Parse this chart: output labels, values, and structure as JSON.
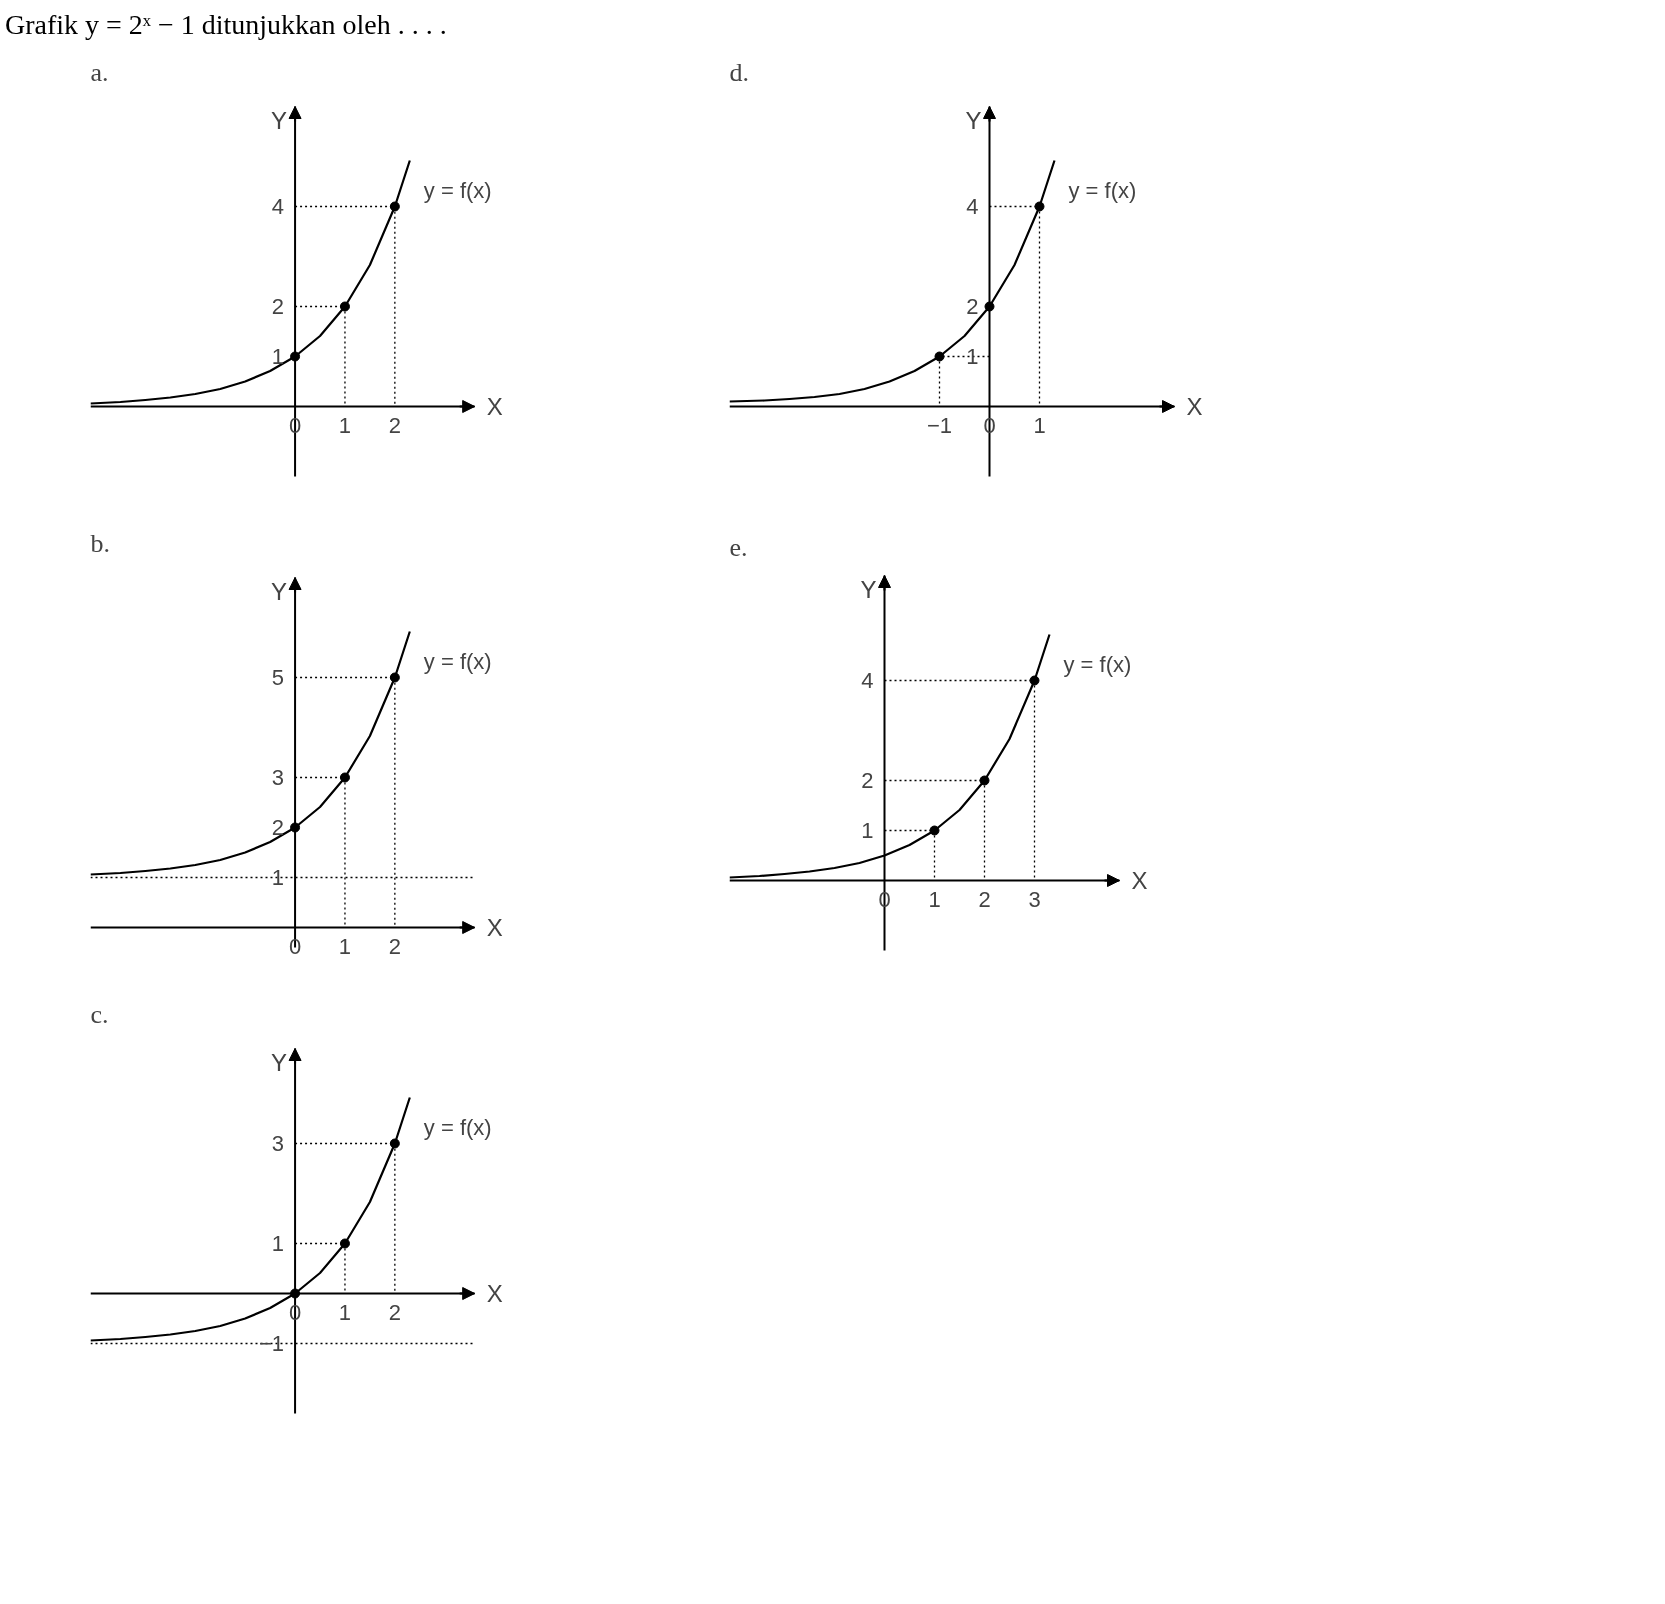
{
  "chart_data": [
    {
      "type": "line",
      "title": "a.",
      "subtitle": "Grafik y = 2ˣ − 1 ditunjukkan oleh . . . .",
      "annotations": [
        "y = f(x)"
      ],
      "xlabel": "X",
      "ylabel": "Y",
      "xlim": [
        -4.1,
        3.6
      ],
      "ylim": [
        -1.4,
        6
      ],
      "xticks": [
        0,
        1,
        2
      ],
      "yticks": [
        1,
        2,
        4
      ],
      "series": [
        {
          "type": "line",
          "color": "#000000",
          "line_style": "solid",
          "x": [
            -4.1,
            -3.5,
            -3,
            -2.5,
            -2,
            -1.5,
            -1,
            -0.5,
            0,
            0.5,
            1,
            1.5,
            2,
            2.3
          ],
          "values": [
            0.06,
            0.09,
            0.13,
            0.18,
            0.25,
            0.35,
            0.5,
            0.71,
            1,
            1.41,
            2,
            2.83,
            4,
            4.92
          ]
        },
        {
          "type": "line",
          "color": "#000000",
          "line_style": "dotted",
          "x": [
            0,
            1,
            1
          ],
          "values": [
            2,
            2,
            0
          ]
        },
        {
          "type": "line",
          "color": "#000000",
          "line_style": "dotted",
          "x": [
            0,
            2,
            2
          ],
          "values": [
            4,
            4,
            0
          ]
        },
        {
          "type": "scatter",
          "color": "#000000",
          "marker": "circle",
          "x": [
            0,
            1,
            2
          ],
          "values": [
            1,
            2,
            4
          ]
        }
      ]
    },
    {
      "type": "line",
      "title": "b.",
      "annotations": [
        "y = f(x)"
      ],
      "xlabel": "X",
      "ylabel": "Y",
      "xlim": [
        -4.1,
        3.6
      ],
      "ylim": [
        -0.4,
        7
      ],
      "xticks": [
        0,
        1,
        2
      ],
      "yticks": [
        1,
        2,
        3,
        5
      ],
      "ref_lines": [
        {
          "axis": "y",
          "value": 1,
          "line_style": "dotted"
        }
      ],
      "series": [
        {
          "type": "line",
          "color": "#000000",
          "line_style": "solid",
          "x": [
            -4.1,
            -3.5,
            -3,
            -2.5,
            -2,
            -1.5,
            -1,
            -0.5,
            0,
            0.5,
            1,
            1.5,
            2,
            2.3
          ],
          "values": [
            1.06,
            1.09,
            1.13,
            1.18,
            1.25,
            1.35,
            1.5,
            1.71,
            2,
            2.41,
            3,
            3.83,
            5,
            5.92
          ]
        },
        {
          "type": "line",
          "color": "#000000",
          "line_style": "dotted",
          "x": [
            0,
            1,
            1
          ],
          "values": [
            3,
            3,
            0
          ]
        },
        {
          "type": "line",
          "color": "#000000",
          "line_style": "dotted",
          "x": [
            0,
            2,
            2
          ],
          "values": [
            5,
            5,
            0
          ]
        },
        {
          "type": "scatter",
          "color": "#000000",
          "marker": "circle",
          "x": [
            0,
            1,
            2
          ],
          "values": [
            2,
            3,
            5
          ]
        }
      ]
    },
    {
      "type": "line",
      "title": "c.",
      "annotations": [
        "y = f(x)"
      ],
      "xlabel": "X",
      "ylabel": "Y",
      "xlim": [
        -4.1,
        3.6
      ],
      "ylim": [
        -2.4,
        4.9
      ],
      "xticks": [
        0,
        1,
        2
      ],
      "yticks": [
        {
          "value": -1,
          "label": "−1"
        },
        1,
        3
      ],
      "ref_lines": [
        {
          "axis": "y",
          "value": -1,
          "line_style": "dotted"
        }
      ],
      "series": [
        {
          "type": "line",
          "color": "#000000",
          "line_style": "solid",
          "x": [
            -4.1,
            -3.5,
            -3,
            -2.5,
            -2,
            -1.5,
            -1,
            -0.5,
            0,
            0.5,
            1,
            1.5,
            2,
            2.3
          ],
          "values": [
            -0.94,
            -0.91,
            -0.87,
            -0.82,
            -0.75,
            -0.65,
            -0.5,
            -0.29,
            0,
            0.41,
            1,
            1.83,
            3,
            3.92
          ]
        },
        {
          "type": "line",
          "color": "#000000",
          "line_style": "dotted",
          "x": [
            0,
            1,
            1
          ],
          "values": [
            1,
            1,
            0
          ]
        },
        {
          "type": "line",
          "color": "#000000",
          "line_style": "dotted",
          "x": [
            0,
            2,
            2
          ],
          "values": [
            3,
            3,
            0
          ]
        },
        {
          "type": "scatter",
          "color": "#000000",
          "marker": "circle",
          "x": [
            0,
            1,
            2
          ],
          "values": [
            0,
            1,
            3
          ]
        }
      ]
    },
    {
      "type": "line",
      "title": "d.",
      "annotations": [
        "y = f(x)"
      ],
      "xlabel": "X",
      "ylabel": "Y",
      "xlim": [
        -5.2,
        3.7
      ],
      "ylim": [
        -1.4,
        6
      ],
      "xticks": [
        {
          "value": -1,
          "label": "−1"
        },
        0,
        1
      ],
      "yticks": [
        1,
        2,
        4
      ],
      "series": [
        {
          "type": "line",
          "color": "#000000",
          "line_style": "solid",
          "x": [
            -5.2,
            -4.5,
            -4,
            -3.5,
            -3,
            -2.5,
            -2,
            -1.5,
            -1,
            -0.5,
            0,
            0.5,
            1,
            1.3
          ],
          "values": [
            0.1,
            0.12,
            0.15,
            0.19,
            0.25,
            0.35,
            0.5,
            0.71,
            1,
            1.41,
            2,
            2.83,
            4,
            4.92
          ]
        },
        {
          "type": "line",
          "color": "#000000",
          "line_style": "dotted",
          "x": [
            0,
            -1,
            -1
          ],
          "values": [
            1,
            1,
            0
          ]
        },
        {
          "type": "line",
          "color": "#000000",
          "line_style": "dotted",
          "x": [
            0,
            1,
            1
          ],
          "values": [
            4,
            4,
            0
          ]
        },
        {
          "type": "scatter",
          "color": "#000000",
          "marker": "circle",
          "x": [
            -1,
            0,
            1
          ],
          "values": [
            1,
            2,
            4
          ]
        }
      ]
    },
    {
      "type": "line",
      "title": "e.",
      "annotations": [
        "y = f(x)"
      ],
      "xlabel": "X",
      "ylabel": "Y",
      "xlim": [
        -3.1,
        4.7
      ],
      "ylim": [
        -1.4,
        6.1
      ],
      "xticks": [
        0,
        1,
        2,
        3
      ],
      "yticks": [
        1,
        2,
        4
      ],
      "series": [
        {
          "type": "line",
          "color": "#000000",
          "line_style": "solid",
          "x": [
            -3.1,
            -2.5,
            -2,
            -1.5,
            -1,
            -0.5,
            0,
            0.5,
            1,
            1.5,
            2,
            2.5,
            3,
            3.3
          ],
          "values": [
            0.06,
            0.09,
            0.13,
            0.18,
            0.25,
            0.35,
            0.5,
            0.71,
            1,
            1.41,
            2,
            2.83,
            4,
            4.92
          ]
        },
        {
          "type": "line",
          "color": "#000000",
          "line_style": "dotted",
          "x": [
            0,
            1,
            1
          ],
          "values": [
            1,
            1,
            0
          ]
        },
        {
          "type": "line",
          "color": "#000000",
          "line_style": "dotted",
          "x": [
            0,
            2,
            2
          ],
          "values": [
            2,
            2,
            0
          ]
        },
        {
          "type": "line",
          "color": "#000000",
          "line_style": "dotted",
          "x": [
            0,
            3,
            3
          ],
          "values": [
            4,
            4,
            0
          ]
        },
        {
          "type": "scatter",
          "color": "#000000",
          "marker": "circle",
          "x": [
            1,
            2,
            3
          ],
          "values": [
            1,
            2,
            4
          ]
        }
      ]
    }
  ]
}
